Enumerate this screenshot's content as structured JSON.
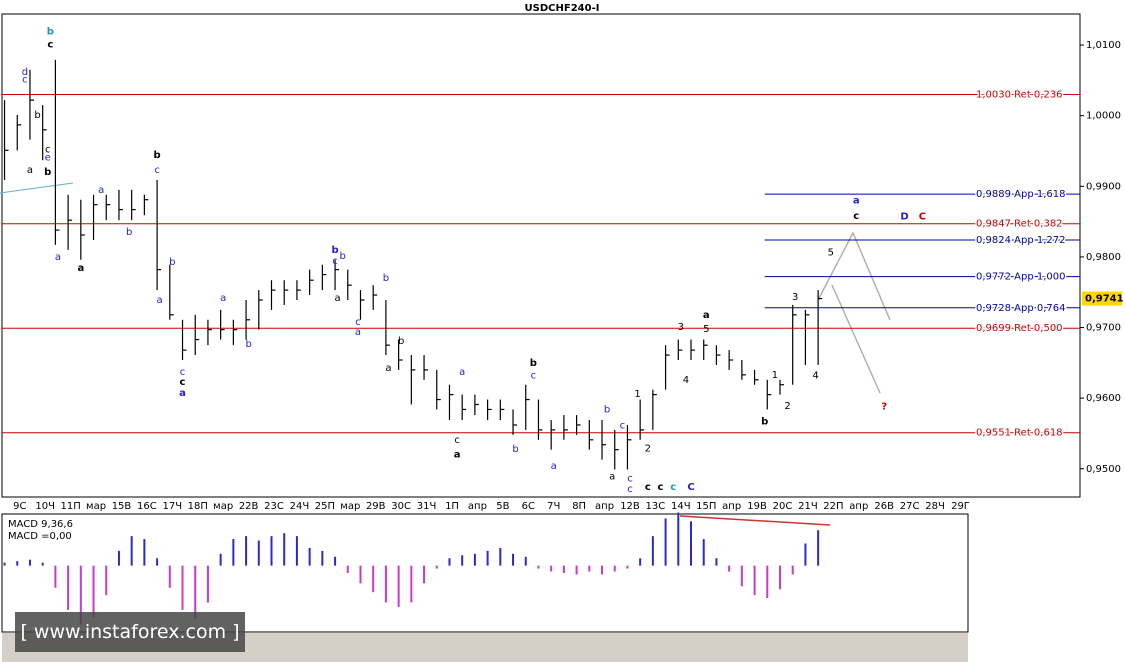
{
  "chart_data": {
    "type": "ohlc",
    "title": "USDCHF240-I",
    "bar_color": "#000000",
    "categories": [
      "9С",
      "10Ч",
      "11П",
      "мар",
      "15В",
      "16С",
      "17Ч",
      "18П",
      "мар",
      "22В",
      "23С",
      "24Ч",
      "25П",
      "мар",
      "29В",
      "30С",
      "31Ч",
      "1П",
      "апр",
      "5В",
      "6С",
      "7Ч",
      "8П",
      "апр",
      "12В",
      "13С",
      "14Ч",
      "15П",
      "апр",
      "19В",
      "20С",
      "21Ч",
      "22П",
      "апр",
      "26В",
      "27С",
      "28Ч",
      "29Г"
    ],
    "xlim": [
      -0.7,
      41.7
    ],
    "ylim": [
      0.946,
      1.0144
    ],
    "yticks": [
      {
        "value": 0.95,
        "label": "0,9500"
      },
      {
        "value": 0.96,
        "label": "0,9600"
      },
      {
        "value": 0.97,
        "label": "0,9700"
      },
      {
        "value": 0.98,
        "label": "0,9800"
      },
      {
        "value": 0.99,
        "label": "0,9900"
      },
      {
        "value": 1.0,
        "label": "1,0000"
      },
      {
        "value": 1.01,
        "label": "1,0100"
      }
    ],
    "ohlc": {
      "x": [
        -0.6,
        -0.1,
        0.4,
        0.9,
        1.4,
        1.9,
        2.4,
        2.9,
        3.4,
        3.9,
        4.4,
        4.9,
        5.4,
        5.9,
        6.4,
        6.9,
        7.4,
        7.9,
        8.4,
        8.9,
        9.4,
        9.9,
        10.4,
        10.9,
        11.4,
        11.9,
        12.4,
        12.9,
        13.4,
        13.9,
        14.4,
        14.9,
        15.4,
        15.9,
        16.4,
        16.9,
        17.4,
        17.9,
        18.4,
        18.9,
        19.4,
        19.9,
        20.4,
        20.9,
        21.4,
        21.9,
        22.4,
        22.9,
        23.4,
        23.9,
        24.4,
        24.9,
        25.4,
        25.9,
        26.4,
        26.9,
        27.4,
        27.9,
        28.4,
        28.9,
        29.4,
        29.9,
        30.4,
        30.9,
        31.4
      ],
      "high": [
        1.0022,
        1.0001,
        1.0065,
        1.0015,
        1.0079,
        0.9888,
        0.9881,
        0.9888,
        0.9888,
        0.9895,
        0.9895,
        0.9888,
        0.9909,
        0.9789,
        0.9711,
        0.9718,
        0.9711,
        0.9725,
        0.9711,
        0.9739,
        0.9753,
        0.9767,
        0.9767,
        0.9767,
        0.9782,
        0.9789,
        0.9796,
        0.9782,
        0.9753,
        0.976,
        0.9739,
        0.9683,
        0.9661,
        0.9661,
        0.964,
        0.9619,
        0.9605,
        0.9605,
        0.9598,
        0.9598,
        0.9584,
        0.9619,
        0.9598,
        0.9569,
        0.9576,
        0.9576,
        0.9569,
        0.9569,
        0.9555,
        0.9562,
        0.9598,
        0.9612,
        0.9675,
        0.9683,
        0.9683,
        0.9683,
        0.9675,
        0.9668,
        0.9654,
        0.964,
        0.9626,
        0.9626,
        0.9732,
        0.9725,
        0.9753
      ],
      "low": [
        0.9909,
        0.9951,
        0.9966,
        0.9937,
        0.9817,
        0.981,
        0.9796,
        0.9824,
        0.9852,
        0.9852,
        0.9852,
        0.9859,
        0.9753,
        0.9711,
        0.9654,
        0.9661,
        0.9675,
        0.9683,
        0.9675,
        0.9683,
        0.9697,
        0.9725,
        0.9732,
        0.9739,
        0.9746,
        0.9753,
        0.9753,
        0.9739,
        0.9711,
        0.9725,
        0.9661,
        0.964,
        0.9591,
        0.9626,
        0.9584,
        0.9569,
        0.9569,
        0.9576,
        0.9569,
        0.9569,
        0.9548,
        0.9555,
        0.9541,
        0.9527,
        0.9541,
        0.9548,
        0.9527,
        0.9513,
        0.9499,
        0.9499,
        0.9541,
        0.9555,
        0.9612,
        0.9654,
        0.9654,
        0.9654,
        0.9647,
        0.964,
        0.9626,
        0.9619,
        0.9584,
        0.9605,
        0.9619,
        0.9647,
        0.9647
      ],
      "close": [
        0.9951,
        0.9987,
        1.0022,
        0.998,
        0.9838,
        0.9852,
        0.9831,
        0.9874,
        0.9874,
        0.9867,
        0.9867,
        0.9881,
        0.9782,
        0.9718,
        0.9668,
        0.9683,
        0.9697,
        0.9697,
        0.9697,
        0.9711,
        0.9739,
        0.9753,
        0.9753,
        0.9753,
        0.9767,
        0.9775,
        0.9782,
        0.976,
        0.9739,
        0.9746,
        0.9675,
        0.9654,
        0.964,
        0.964,
        0.9598,
        0.9605,
        0.9584,
        0.9591,
        0.9584,
        0.9584,
        0.9562,
        0.9598,
        0.9555,
        0.9555,
        0.9555,
        0.9562,
        0.9541,
        0.9534,
        0.9527,
        0.9541,
        0.9555,
        0.9605,
        0.9661,
        0.9668,
        0.9668,
        0.9675,
        0.9661,
        0.9654,
        0.9633,
        0.9626,
        0.9605,
        0.9619,
        0.9718,
        0.9718,
        0.9741
      ]
    },
    "last_price": {
      "value": 0.9741,
      "label": "0,9741"
    },
    "levels": [
      {
        "value": 1.003,
        "label": "1,0030 Ret 0,236",
        "color": "#cc0000"
      },
      {
        "value": 0.9889,
        "label": "0,9889 App 1,618",
        "color": "#0000aa",
        "x_start": 29.3
      },
      {
        "value": 0.9847,
        "label": "0,9847 Ret 0,382",
        "color": "#cc0000"
      },
      {
        "value": 0.9824,
        "label": "0,9824 App 1,272",
        "color": "#0000aa",
        "x_start": 29.3
      },
      {
        "value": 0.9772,
        "label": "0,9772 App 1,000",
        "color": "#0000aa",
        "x_start": 29.3
      },
      {
        "value": 0.9728,
        "label": "0,9728 App 0,764",
        "color": "#0000aa",
        "x_start": 29.3
      },
      {
        "value": 0.9699,
        "label": "0,9699 Ret 0,500",
        "color": "#cc0000"
      },
      {
        "value": 0.9551,
        "label": "0,9551 Ret 0,618",
        "color": "#cc0000"
      }
    ],
    "annotations": [
      {
        "text": "b",
        "x": 1.2,
        "y": 1.0119,
        "color": "#1a9ab0",
        "bold": true
      },
      {
        "text": "c",
        "x": 1.2,
        "y": 1.0101,
        "color": "#000000",
        "bold": true
      },
      {
        "text": "d",
        "x": 0.2,
        "y": 1.0062,
        "color": "#1f1fcc",
        "bold": false
      },
      {
        "text": "c",
        "x": 0.2,
        "y": 1.0051,
        "color": "#1f1fcc",
        "bold": false
      },
      {
        "text": "b",
        "x": 0.7,
        "y": 1.0001,
        "color": "#000000",
        "bold": false
      },
      {
        "text": "c",
        "x": 1.1,
        "y": 0.9952,
        "color": "#000000",
        "bold": false
      },
      {
        "text": "e",
        "x": 1.1,
        "y": 0.9941,
        "color": "#1f1fcc",
        "bold": false
      },
      {
        "text": "a",
        "x": 0.4,
        "y": 0.9923,
        "color": "#000000",
        "bold": false
      },
      {
        "text": "b",
        "x": 1.1,
        "y": 0.992,
        "color": "#000000",
        "bold": true
      },
      {
        "text": "a",
        "x": 1.5,
        "y": 0.98,
        "color": "#1f1fcc",
        "bold": false
      },
      {
        "text": "a",
        "x": 2.4,
        "y": 0.9784,
        "color": "#000000",
        "bold": true
      },
      {
        "text": "a",
        "x": 3.2,
        "y": 0.9895,
        "color": "#1f1fcc",
        "bold": false
      },
      {
        "text": "b",
        "x": 4.3,
        "y": 0.9835,
        "color": "#1f1fcc",
        "bold": false
      },
      {
        "text": "b",
        "x": 5.4,
        "y": 0.9944,
        "color": "#000000",
        "bold": true
      },
      {
        "text": "c",
        "x": 5.4,
        "y": 0.9923,
        "color": "#1f1fcc",
        "bold": false
      },
      {
        "text": "b",
        "x": 6.0,
        "y": 0.9793,
        "color": "#1f1fcc",
        "bold": false
      },
      {
        "text": "a",
        "x": 5.5,
        "y": 0.9739,
        "color": "#1f1fcc",
        "bold": false
      },
      {
        "text": "c",
        "x": 6.4,
        "y": 0.9637,
        "color": "#1f1fcc",
        "bold": false
      },
      {
        "text": "c",
        "x": 6.4,
        "y": 0.9623,
        "color": "#000000",
        "bold": true
      },
      {
        "text": "a",
        "x": 6.4,
        "y": 0.9607,
        "color": "#1f1fcc",
        "bold": true
      },
      {
        "text": "a",
        "x": 8.0,
        "y": 0.9742,
        "color": "#1f1fcc",
        "bold": false
      },
      {
        "text": "b",
        "x": 9.0,
        "y": 0.9677,
        "color": "#1f1fcc",
        "bold": false
      },
      {
        "text": "b",
        "x": 12.4,
        "y": 0.981,
        "color": "#1f1fcc",
        "bold": true
      },
      {
        "text": "c",
        "x": 12.4,
        "y": 0.9794,
        "color": "#1f1fcc",
        "bold": false
      },
      {
        "text": "b",
        "x": 12.7,
        "y": 0.9801,
        "color": "#1f1fcc",
        "bold": false
      },
      {
        "text": "a",
        "x": 12.5,
        "y": 0.9742,
        "color": "#000000",
        "bold": false
      },
      {
        "text": "c",
        "x": 13.3,
        "y": 0.9708,
        "color": "#1f1fcc",
        "bold": false
      },
      {
        "text": "a",
        "x": 13.3,
        "y": 0.9694,
        "color": "#1f1fcc",
        "bold": false
      },
      {
        "text": "b",
        "x": 14.4,
        "y": 0.977,
        "color": "#1f1fcc",
        "bold": false
      },
      {
        "text": "b",
        "x": 15.0,
        "y": 0.9681,
        "color": "#000000",
        "bold": false
      },
      {
        "text": "a",
        "x": 14.5,
        "y": 0.9643,
        "color": "#000000",
        "bold": false
      },
      {
        "text": "a",
        "x": 17.4,
        "y": 0.9637,
        "color": "#1f1fcc",
        "bold": false
      },
      {
        "text": "c",
        "x": 17.2,
        "y": 0.9541,
        "color": "#000000",
        "bold": false
      },
      {
        "text": "a",
        "x": 17.2,
        "y": 0.952,
        "color": "#000000",
        "bold": true
      },
      {
        "text": "b",
        "x": 19.5,
        "y": 0.9528,
        "color": "#1f1fcc",
        "bold": false
      },
      {
        "text": "b",
        "x": 20.2,
        "y": 0.965,
        "color": "#000000",
        "bold": true
      },
      {
        "text": "c",
        "x": 20.2,
        "y": 0.9632,
        "color": "#1f1fcc",
        "bold": false
      },
      {
        "text": "a",
        "x": 21.0,
        "y": 0.9504,
        "color": "#1f1fcc",
        "bold": false
      },
      {
        "text": "b",
        "x": 23.1,
        "y": 0.9584,
        "color": "#1f1fcc",
        "bold": false
      },
      {
        "text": "c",
        "x": 23.7,
        "y": 0.9561,
        "color": "#1f1fcc",
        "bold": false
      },
      {
        "text": "a",
        "x": 23.3,
        "y": 0.9489,
        "color": "#000000",
        "bold": false
      },
      {
        "text": "c",
        "x": 24.0,
        "y": 0.9486,
        "color": "#1f1fcc",
        "bold": false
      },
      {
        "text": "c",
        "x": 24.0,
        "y": 0.9471,
        "color": "#1f1fcc",
        "bold": false
      },
      {
        "text": "c",
        "x": 24.7,
        "y": 0.9474,
        "color": "#000000",
        "bold": true
      },
      {
        "text": "c",
        "x": 25.2,
        "y": 0.9474,
        "color": "#000000",
        "bold": true
      },
      {
        "text": "c",
        "x": 25.7,
        "y": 0.9474,
        "color": "#1a9ab0",
        "bold": true
      },
      {
        "text": "C",
        "x": 26.4,
        "y": 0.9474,
        "color": "#1f1fcc",
        "bold": true
      },
      {
        "text": "1",
        "x": 24.3,
        "y": 0.9606,
        "color": "#000000",
        "bold": false
      },
      {
        "text": "2",
        "x": 24.7,
        "y": 0.9529,
        "color": "#000000",
        "bold": false
      },
      {
        "text": "3",
        "x": 26.0,
        "y": 0.9701,
        "color": "#000000",
        "bold": false
      },
      {
        "text": "5",
        "x": 27.0,
        "y": 0.9698,
        "color": "#000000",
        "bold": false
      },
      {
        "text": "a",
        "x": 27.0,
        "y": 0.9718,
        "color": "#000000",
        "bold": true
      },
      {
        "text": "4",
        "x": 26.2,
        "y": 0.9626,
        "color": "#000000",
        "bold": false
      },
      {
        "text": "1",
        "x": 29.7,
        "y": 0.9633,
        "color": "#000000",
        "bold": false
      },
      {
        "text": "2",
        "x": 30.2,
        "y": 0.9589,
        "color": "#000000",
        "bold": false
      },
      {
        "text": "b",
        "x": 29.3,
        "y": 0.9567,
        "color": "#000000",
        "bold": true
      },
      {
        "text": "3",
        "x": 30.5,
        "y": 0.9743,
        "color": "#000000",
        "bold": false
      },
      {
        "text": "4",
        "x": 31.3,
        "y": 0.9632,
        "color": "#000000",
        "bold": false
      },
      {
        "text": "5",
        "x": 31.9,
        "y": 0.9806,
        "color": "#000000",
        "bold": false
      },
      {
        "text": "a",
        "x": 32.9,
        "y": 0.988,
        "color": "#1f1fcc",
        "bold": true
      },
      {
        "text": "c",
        "x": 32.9,
        "y": 0.9858,
        "color": "#000000",
        "bold": true
      },
      {
        "text": "D",
        "x": 34.8,
        "y": 0.9857,
        "color": "#1f1fcc",
        "bold": true
      },
      {
        "text": "C",
        "x": 35.5,
        "y": 0.9857,
        "color": "#cc0000",
        "bold": true
      },
      {
        "text": "?",
        "x": 34.0,
        "y": 0.9588,
        "color": "#cc0000",
        "bold": true
      }
    ],
    "macd": {
      "name": "MACD 9,36,6",
      "value_text": "MACD =0,00",
      "positive_color": "#2b2bc8",
      "negative_color": "#c83ac8",
      "ylim": [
        -0.0045,
        0.0035
      ],
      "values": [
        0.0002,
        0.0003,
        0.0004,
        0.0002,
        -0.0015,
        -0.003,
        -0.004,
        -0.0035,
        -0.002,
        0.001,
        0.002,
        0.0018,
        0.0005,
        -0.0015,
        -0.003,
        -0.0036,
        -0.0025,
        0.0008,
        0.0018,
        0.002,
        0.0017,
        0.002,
        0.0022,
        0.002,
        0.0012,
        0.001,
        0.0006,
        -0.0005,
        -0.0012,
        -0.0018,
        -0.0025,
        -0.0028,
        -0.0025,
        -0.0012,
        -0.0002,
        0.0005,
        0.0007,
        0.0008,
        0.001,
        0.0012,
        0.0008,
        0.0006,
        -0.0002,
        -0.0004,
        -0.0005,
        -0.0006,
        -0.0004,
        -0.0006,
        -0.0004,
        -0.0002,
        0.0005,
        0.002,
        0.0032,
        0.0036,
        0.003,
        0.0018,
        0.0005,
        -0.0004,
        -0.0014,
        -0.002,
        -0.0022,
        -0.0016,
        -0.0006,
        0.0015,
        0.0024
      ]
    },
    "watermark": "[ www.instaforex.com ]"
  }
}
